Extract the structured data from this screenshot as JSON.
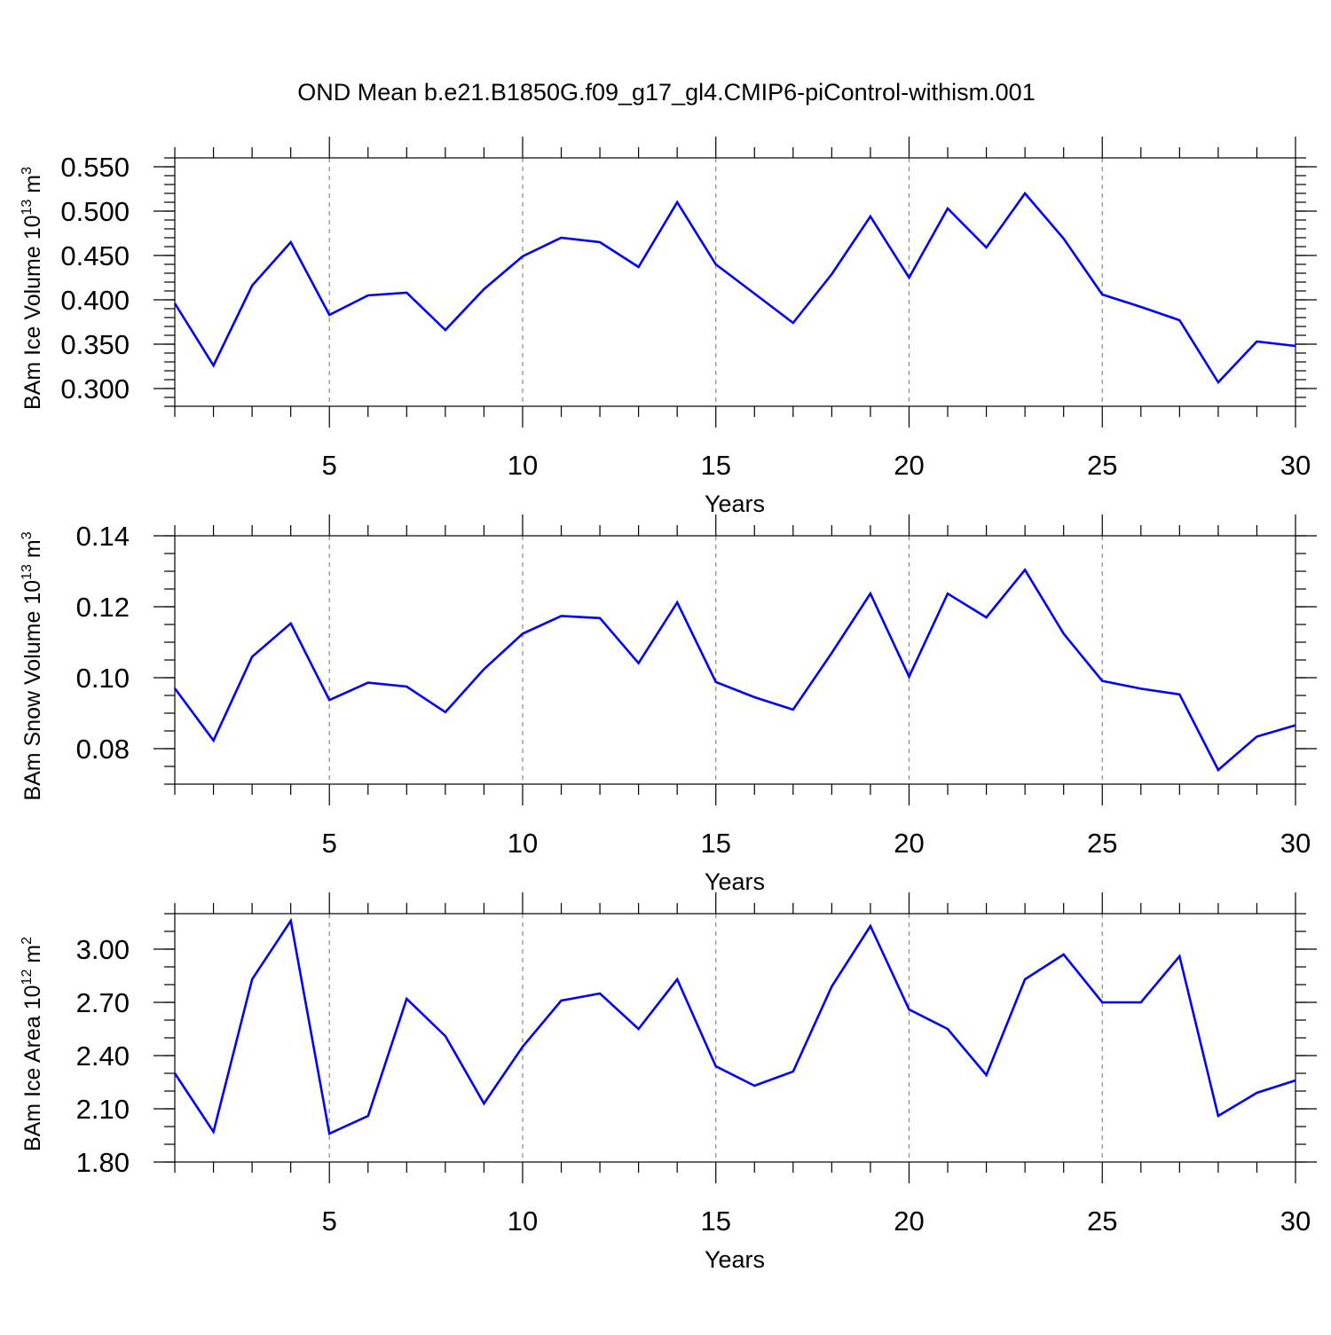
{
  "figure": {
    "title": "OND Mean b.e21.B1850G.f09_g17_gl4.CMIP6-piControl-withism.001"
  },
  "chart_data": [
    {
      "type": "line",
      "ylabel": {
        "prefix": "BAm Ice Volume 10",
        "exp": "13",
        "unit": " m",
        "unit_exp": "3"
      },
      "xlabel": "Years",
      "xlim": [
        1,
        30
      ],
      "ylim": [
        0.28,
        0.56
      ],
      "xticks": [
        5,
        10,
        15,
        20,
        25,
        30
      ],
      "yticks": [
        0.3,
        0.35,
        0.4,
        0.45,
        0.5,
        0.55
      ],
      "ytick_labels": [
        "0.300",
        "0.350",
        "0.400",
        "0.450",
        "0.500",
        "0.550"
      ],
      "minor_y_step": 0.01,
      "grid": "dashed vertical at major x ticks",
      "color": "#0000ff",
      "series": [
        {
          "x": [
            1,
            2,
            3,
            4,
            5,
            6,
            7,
            8,
            9,
            10,
            11,
            12,
            13,
            14,
            15,
            16,
            17,
            18,
            19,
            20,
            21,
            22,
            23,
            24,
            25,
            26,
            27,
            28,
            29,
            30
          ],
          "values": [
            0.396,
            0.326,
            0.416,
            0.465,
            0.383,
            0.405,
            0.408,
            0.366,
            0.412,
            0.449,
            0.47,
            0.465,
            0.437,
            0.51,
            0.44,
            0.407,
            0.374,
            0.429,
            0.494,
            0.425,
            0.503,
            0.459,
            0.52,
            0.469,
            0.406,
            0.392,
            0.377,
            0.307,
            0.353,
            0.348
          ]
        }
      ]
    },
    {
      "type": "line",
      "ylabel": {
        "prefix": "BAm Snow Volume 10",
        "exp": "13",
        "unit": " m",
        "unit_exp": "3"
      },
      "xlabel": "Years",
      "xlim": [
        1,
        30
      ],
      "ylim": [
        0.07,
        0.14
      ],
      "xticks": [
        5,
        10,
        15,
        20,
        25,
        30
      ],
      "yticks": [
        0.08,
        0.1,
        0.12,
        0.14
      ],
      "ytick_labels": [
        "0.08",
        "0.10",
        "0.12",
        "0.14"
      ],
      "minor_y_step": 0.005,
      "grid": "dashed vertical at major x ticks",
      "color": "#0000ff",
      "series": [
        {
          "x": [
            1,
            2,
            3,
            4,
            5,
            6,
            7,
            8,
            9,
            10,
            11,
            12,
            13,
            14,
            15,
            16,
            17,
            18,
            19,
            20,
            21,
            22,
            23,
            24,
            25,
            26,
            27,
            28,
            29,
            30
          ],
          "values": [
            0.097,
            0.0823,
            0.1059,
            0.1153,
            0.0937,
            0.0986,
            0.0975,
            0.0903,
            0.1024,
            0.1124,
            0.1174,
            0.1168,
            0.1041,
            0.1212,
            0.0988,
            0.0945,
            0.091,
            0.107,
            0.1237,
            0.1003,
            0.1237,
            0.117,
            0.1304,
            0.1124,
            0.0991,
            0.0969,
            0.0953,
            0.074,
            0.0834,
            0.0866
          ]
        }
      ]
    },
    {
      "type": "line",
      "ylabel": {
        "prefix": "BAm Ice Area 10",
        "exp": "12",
        "unit": " m",
        "unit_exp": "2"
      },
      "xlabel": "Years",
      "xlim": [
        1,
        30
      ],
      "ylim": [
        1.8,
        3.2
      ],
      "xticks": [
        5,
        10,
        15,
        20,
        25,
        30
      ],
      "yticks": [
        1.8,
        2.1,
        2.4,
        2.7,
        3.0
      ],
      "ytick_labels": [
        "1.80",
        "2.10",
        "2.40",
        "2.70",
        "3.00"
      ],
      "minor_y_step": 0.1,
      "grid": "dashed vertical at major x ticks",
      "color": "#0000ff",
      "series": [
        {
          "x": [
            1,
            2,
            3,
            4,
            5,
            6,
            7,
            8,
            9,
            10,
            11,
            12,
            13,
            14,
            15,
            16,
            17,
            18,
            19,
            20,
            21,
            22,
            23,
            24,
            25,
            26,
            27,
            28,
            29,
            30
          ],
          "values": [
            2.3,
            1.97,
            2.83,
            3.16,
            1.96,
            2.06,
            2.72,
            2.51,
            2.13,
            2.45,
            2.71,
            2.75,
            2.55,
            2.83,
            2.34,
            2.23,
            2.31,
            2.79,
            3.13,
            2.66,
            2.55,
            2.29,
            2.83,
            2.97,
            2.7,
            2.7,
            2.96,
            2.06,
            2.19,
            2.26
          ]
        }
      ]
    }
  ]
}
